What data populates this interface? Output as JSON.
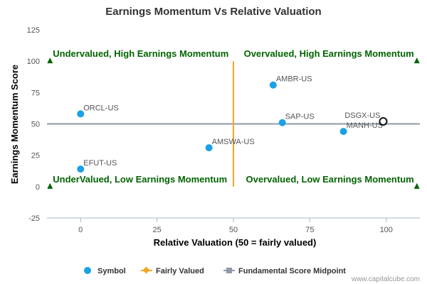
{
  "chart_data": {
    "type": "scatter",
    "title": "Earnings Momentum Vs Relative Valuation",
    "xlabel": "Relative Valuation (50 = fairly valued)",
    "ylabel": "Earnings Momentum Score",
    "xlim": [
      -11,
      111
    ],
    "ylim": [
      -25,
      125
    ],
    "xticks": [
      0,
      25,
      50,
      75,
      100
    ],
    "yticks": [
      -25,
      0,
      25,
      50,
      75,
      100,
      125
    ],
    "grid": false,
    "legend_position": "bottom",
    "fair_value_x": 50,
    "midpoint_y": 50,
    "points": [
      {
        "label": "ORCL-US",
        "x": 0,
        "y": 58
      },
      {
        "label": "EFUT-US",
        "x": 0,
        "y": 14
      },
      {
        "label": "AMSWA-US",
        "x": 42,
        "y": 31
      },
      {
        "label": "AMBR-US",
        "x": 63,
        "y": 81
      },
      {
        "label": "SAP-US",
        "x": 66,
        "y": 51
      },
      {
        "label": "MANH-US",
        "x": 86,
        "y": 44
      },
      {
        "label": "DSGX-US",
        "x": 99,
        "y": 52,
        "highlight": true
      }
    ],
    "quadrant_labels": [
      {
        "text": "Undervalued, High Earnings Momentum",
        "x": -10,
        "y": 100
      },
      {
        "text": "Overvalued, High Earnings Momentum",
        "x": 110,
        "y": 100
      },
      {
        "text": "UnderValued, Low Earnings Momentum",
        "x": -10,
        "y": 0
      },
      {
        "text": "Overvalued, Low Earnings Momentum",
        "x": 110,
        "y": 0
      }
    ],
    "legend": [
      "Symbol",
      "Fairly Valued",
      "Fundamental Score Midpoint"
    ],
    "colors": {
      "symbol": "#1aa1e6",
      "fair_line": "#f5a623",
      "midpoint_line": "#8f9aa8",
      "quadrant": "#006400",
      "axis": "#aab7c4"
    }
  },
  "credit": "www.capitalcube.com"
}
